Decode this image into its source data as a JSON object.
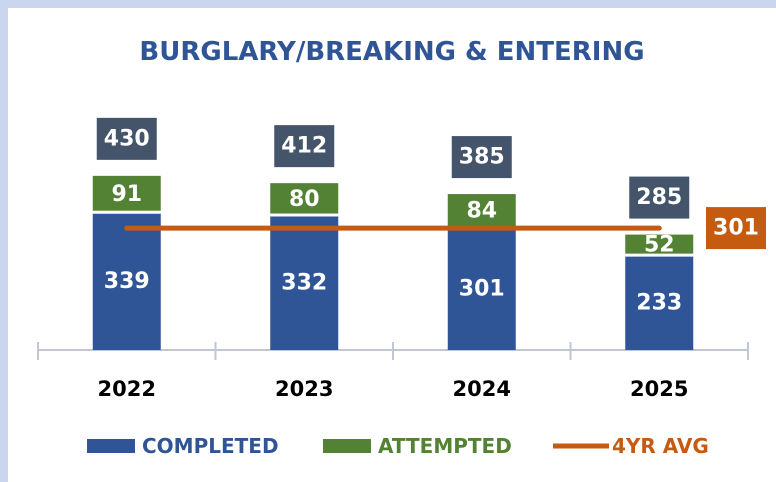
{
  "chart_data": {
    "type": "bar",
    "title": "BURGLARY/BREAKING & ENTERING",
    "categories": [
      "2022",
      "2023",
      "2024",
      "2025"
    ],
    "series": [
      {
        "name": "COMPLETED",
        "color": "#2f5597",
        "values": [
          339,
          332,
          301,
          233
        ]
      },
      {
        "name": "ATTEMPTED",
        "color": "#548235",
        "values": [
          91,
          80,
          84,
          52
        ]
      }
    ],
    "totals": [
      430,
      412,
      385,
      285
    ],
    "totals_color": "#44546a",
    "average": {
      "name": "4YR AVG",
      "color": "#c55a11",
      "value": 301
    }
  }
}
